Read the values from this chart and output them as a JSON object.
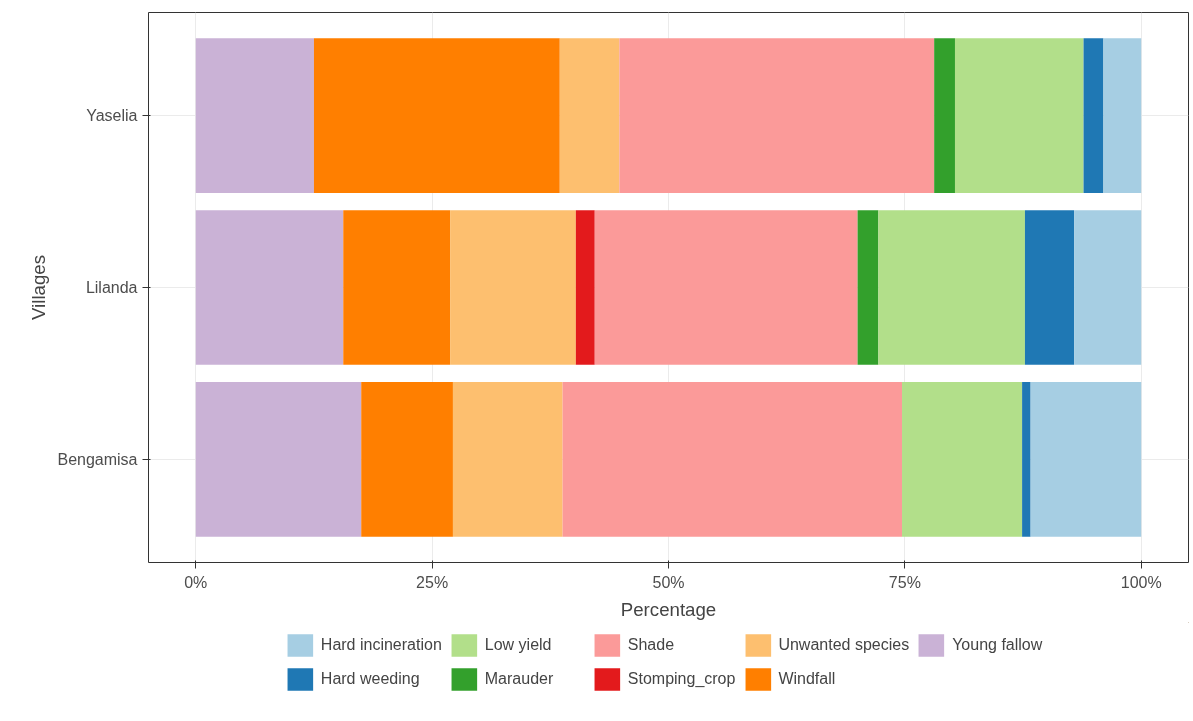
{
  "chart_data": {
    "type": "bar",
    "orientation": "horizontal",
    "stacked": true,
    "xlabel": "Percentage",
    "ylabel": "Villages",
    "categories": [
      "Yaselia",
      "Lilanda",
      "Bengamisa"
    ],
    "series": [
      {
        "name": "Young fallow",
        "color": "#cab2d6",
        "values": [
          12.5,
          15.6,
          17.5
        ]
      },
      {
        "name": "Windfall",
        "color": "#ff7f00",
        "values": [
          26.0,
          11.3,
          9.7
        ]
      },
      {
        "name": "Unwanted species",
        "color": "#fdbf6f",
        "values": [
          6.3,
          13.3,
          11.6
        ]
      },
      {
        "name": "Stomping_crop",
        "color": "#e31a1c",
        "values": [
          0,
          2.0,
          0
        ]
      },
      {
        "name": "Shade",
        "color": "#fb9a99",
        "values": [
          33.3,
          27.8,
          35.9
        ]
      },
      {
        "name": "Marauder",
        "color": "#33a02c",
        "values": [
          2.2,
          2.2,
          0
        ]
      },
      {
        "name": "Low yield",
        "color": "#b2df8a",
        "values": [
          13.6,
          15.5,
          12.7
        ]
      },
      {
        "name": "Hard weeding",
        "color": "#1f78b4",
        "values": [
          2.1,
          5.2,
          0.9
        ]
      },
      {
        "name": "Hard incineration",
        "color": "#a6cee3",
        "values": [
          4.0,
          7.1,
          11.7
        ]
      }
    ],
    "xlim": [
      -5,
      105
    ],
    "xticks": [
      {
        "value": 0,
        "label": "0%"
      },
      {
        "value": 25,
        "label": "25%"
      },
      {
        "value": 50,
        "label": "50%"
      },
      {
        "value": 75,
        "label": "75%"
      },
      {
        "value": 100,
        "label": "100%"
      }
    ],
    "grid": true,
    "legend": "bottom"
  }
}
